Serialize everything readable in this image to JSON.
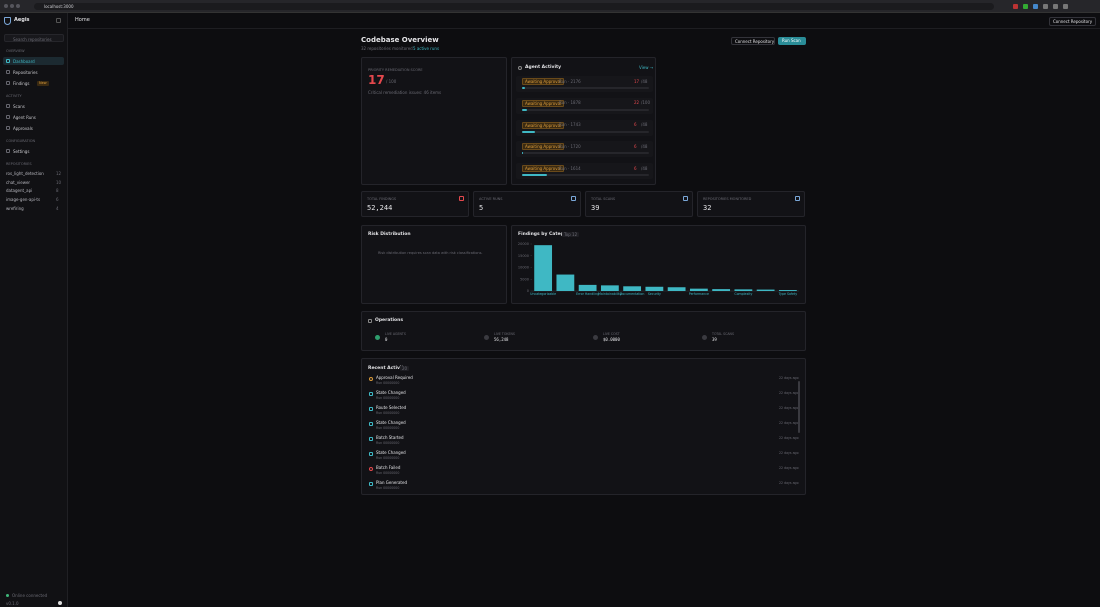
{
  "browser": {
    "url": "localhost:3000"
  },
  "sidebar": {
    "brand": "Aegis",
    "search": "Search repositories",
    "sections": [
      {
        "title": "OVERVIEW",
        "items": [
          "Dashboard",
          "Repositories",
          "Findings"
        ]
      },
      {
        "title": "ACTIVITY",
        "items": [
          "Scans",
          "Agent Runs",
          "Approvals"
        ]
      },
      {
        "title": "CONFIGURATION",
        "items": [
          "Settings"
        ]
      }
    ],
    "findings_badge": "New",
    "repositories_title": "REPOSITORIES",
    "repositories": [
      {
        "name": "ros_light_detection",
        "count": "12"
      },
      {
        "name": "chat_viewer",
        "count": "10"
      },
      {
        "name": "datagent_api",
        "count": "8"
      },
      {
        "name": "image-gen-api-ts",
        "count": "6"
      },
      {
        "name": "wrefiring",
        "count": "4"
      }
    ],
    "status": "Online connected",
    "version": "v0.1.0"
  },
  "header": {
    "title": "Home",
    "button": "Connect Repository"
  },
  "overview": {
    "title": "Codebase Overview",
    "subtitle": "32 repositories monitored ·",
    "active": "5 active runs",
    "buttons": [
      "Connect Repository",
      "Run Scan"
    ]
  },
  "score_card": {
    "label": "PRIORITY REMEDIATION SCORE",
    "value": "17",
    "suffix": "/ 100",
    "note": "Critical remediation issues: 46 items"
  },
  "agent_activity": {
    "title": "Agent Activity",
    "link": "View →",
    "rows": [
      {
        "status": "Awaiting Approval",
        "run": "Run · 2176",
        "count": "17",
        "total": "/48",
        "progress": 2
      },
      {
        "status": "Awaiting Approval",
        "run": "Run · 1878",
        "count": "22",
        "total": "/100",
        "progress": 4
      },
      {
        "status": "Awaiting Approval",
        "run": "Run · 1743",
        "count": "6",
        "total": "/48",
        "progress": 10
      },
      {
        "status": "Awaiting Approval",
        "run": "Run · 1720",
        "count": "6",
        "total": "/48",
        "progress": 1
      },
      {
        "status": "Awaiting Approval",
        "run": "Run · 1614",
        "count": "6",
        "total": "/48",
        "progress": 20
      }
    ]
  },
  "stats": [
    {
      "label": "TOTAL FINDINGS",
      "value": "52,244"
    },
    {
      "label": "ACTIVE RUNS",
      "value": "5"
    },
    {
      "label": "TOTAL SCANS",
      "value": "39"
    },
    {
      "label": "REPOSITORIES MONITORED",
      "value": "32"
    }
  ],
  "risk": {
    "title": "Risk Distribution",
    "message": "Risk distribution requires scan data with risk classifications."
  },
  "findings_chart": {
    "type": "bar",
    "title": "Findings by Category",
    "badge": "Top 12",
    "categories": [
      "Uncategorizable",
      null,
      "Error Handling",
      "Maintainability",
      "Documentation",
      "Security",
      null,
      "Performance",
      null,
      "Complexity",
      null,
      "Type Safety"
    ],
    "values": [
      19500,
      7000,
      2600,
      2400,
      2000,
      1800,
      1600,
      1000,
      800,
      700,
      600,
      400
    ],
    "color": "#3fb8c4",
    "ylim": [
      0,
      20000
    ],
    "yticks": [
      0,
      5000,
      10000,
      15000,
      20000
    ]
  },
  "operations": {
    "title": "Operations",
    "items": [
      {
        "label": "LIVE AGENTS",
        "value": "0"
      },
      {
        "label": "LIVE TOKENS",
        "value": "56,248"
      },
      {
        "label": "LIVE COST",
        "value": "$0.0000"
      },
      {
        "label": "TOTAL SCANS",
        "value": "39"
      }
    ]
  },
  "recent": {
    "title": "Recent Activity",
    "count": "20",
    "items": [
      {
        "title": "Approval Required",
        "run": "Run 00000000",
        "time": "22 days ago"
      },
      {
        "title": "State Changed",
        "run": "Run 00000000",
        "time": "22 days ago"
      },
      {
        "title": "Route Selected",
        "run": "Run 00000000",
        "time": "22 days ago"
      },
      {
        "title": "State Changed",
        "run": "Run 00000000",
        "time": "22 days ago"
      },
      {
        "title": "Batch Started",
        "run": "Run 00000000",
        "time": "22 days ago"
      },
      {
        "title": "State Changed",
        "run": "Run 00000000",
        "time": "22 days ago"
      },
      {
        "title": "Batch Failed",
        "run": "Run 00000000",
        "time": "22 days ago"
      },
      {
        "title": "Plan Generated",
        "run": "Run 00000000",
        "time": "22 days ago"
      }
    ]
  }
}
